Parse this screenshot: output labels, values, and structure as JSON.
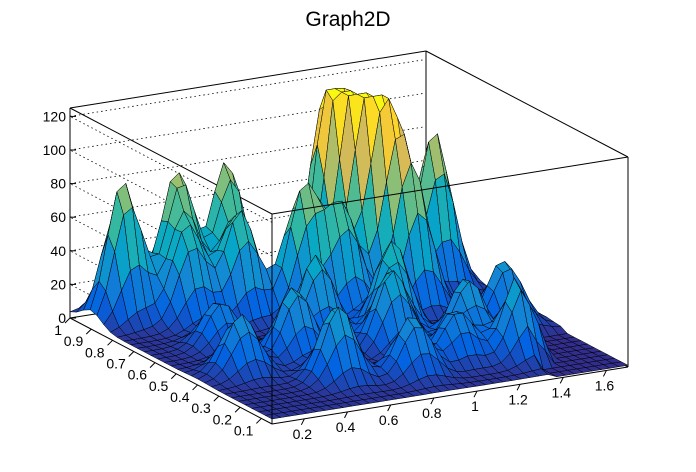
{
  "chart_data": {
    "type": "surface",
    "title": "Graph2D",
    "xlabel": "",
    "ylabel": "",
    "zlabel": "",
    "xlim": [
      0.05,
      1.7
    ],
    "ylim": [
      0.05,
      1.0
    ],
    "zlim": [
      0,
      125
    ],
    "x_ticks": [
      "0.2",
      "0.4",
      "0.6",
      "0.8",
      "1",
      "1.2",
      "1.4",
      "1.6"
    ],
    "y_ticks": [
      "0.1",
      "0.2",
      "0.3",
      "0.4",
      "0.5",
      "0.6",
      "0.7",
      "0.8",
      "0.9",
      "1"
    ],
    "z_ticks": [
      "0",
      "20",
      "40",
      "60",
      "80",
      "100",
      "120"
    ],
    "grid": true,
    "colormap": [
      "#352a87",
      "#0363e1",
      "#1485d4",
      "#06a7c6",
      "#38b99e",
      "#92bf73",
      "#d9ba56",
      "#fcce2e",
      "#f9fb0e"
    ],
    "peaks": [
      {
        "x": 0.2,
        "y": 0.9,
        "z": 82
      },
      {
        "x": 0.45,
        "y": 0.9,
        "z": 80
      },
      {
        "x": 0.68,
        "y": 0.9,
        "z": 83
      },
      {
        "x": 0.4,
        "y": 0.8,
        "z": 50
      },
      {
        "x": 0.62,
        "y": 0.78,
        "z": 62
      },
      {
        "x": 0.85,
        "y": 0.72,
        "z": 75
      },
      {
        "x": 1.0,
        "y": 0.68,
        "z": 62
      },
      {
        "x": 1.1,
        "y": 0.85,
        "z": 122
      },
      {
        "x": 1.17,
        "y": 0.78,
        "z": 103
      },
      {
        "x": 1.25,
        "y": 0.73,
        "z": 93
      },
      {
        "x": 1.3,
        "y": 0.65,
        "z": 70
      },
      {
        "x": 1.52,
        "y": 0.78,
        "z": 93
      },
      {
        "x": 0.75,
        "y": 0.55,
        "z": 50
      },
      {
        "x": 1.05,
        "y": 0.5,
        "z": 55
      },
      {
        "x": 0.55,
        "y": 0.45,
        "z": 42
      },
      {
        "x": 0.95,
        "y": 0.4,
        "z": 45
      },
      {
        "x": 0.25,
        "y": 0.4,
        "z": 35
      },
      {
        "x": 1.25,
        "y": 0.35,
        "z": 40
      },
      {
        "x": 0.55,
        "y": 0.25,
        "z": 45
      },
      {
        "x": 0.85,
        "y": 0.2,
        "z": 35
      },
      {
        "x": 1.35,
        "y": 0.2,
        "z": 50
      },
      {
        "x": 1.52,
        "y": 0.45,
        "z": 38
      },
      {
        "x": 0.35,
        "y": 0.6,
        "z": 28
      },
      {
        "x": 1.1,
        "y": 0.25,
        "z": 30
      }
    ]
  }
}
